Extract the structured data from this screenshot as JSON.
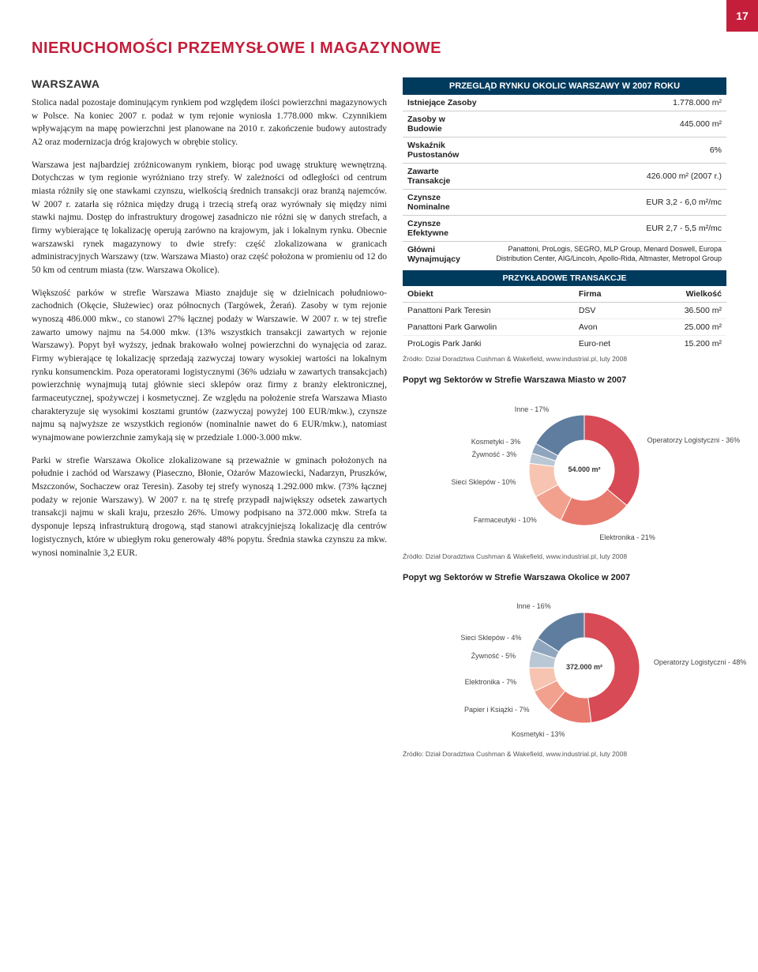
{
  "page_number": "17",
  "section_title": "NIERUCHOMOŚCI PRZEMYSŁOWE I MAGAZYNOWE",
  "subsection": "WARSZAWA",
  "paragraphs": {
    "p1": "Stolica nadal pozostaje dominującym rynkiem pod względem ilości powierzchni magazynowych w Polsce. Na koniec 2007 r. podaż w tym rejonie wyniosła 1.778.000 mkw. Czynnikiem wpływającym na mapę powierzchni jest planowane na 2010 r. zakończenie budowy autostrady A2 oraz modernizacja dróg krajowych w obrębie stolicy.",
    "p2": "Warszawa jest najbardziej zróżnicowanym rynkiem, biorąc pod uwagę strukturę wewnętrzną. Dotychczas w tym regionie wyróżniano trzy strefy. W zależności od odległości od centrum miasta różniły się one stawkami czynszu, wielkością średnich transakcji oraz branżą najemców. W 2007 r. zatarła się różnica między drugą i trzecią strefą oraz wyrównały się między nimi stawki najmu. Dostęp do infrastruktury drogowej zasadniczo nie różni się w danych strefach, a firmy wybierające tę lokalizację operują zarówno na krajowym, jak i lokalnym rynku. Obecnie warszawski rynek magazynowy to dwie strefy: część zlokalizowana w granicach administracyjnych Warszawy (tzw. Warszawa Miasto) oraz część położona w promieniu od 12 do 50 km od centrum miasta (tzw. Warszawa Okolice).",
    "p3": "Większość parków w strefie Warszawa Miasto znajduje się w dzielnicach południowo-zachodnich (Okęcie, Służewiec) oraz północnych (Targówek, Żerań). Zasoby w tym rejonie wynoszą 486.000 mkw., co stanowi 27% łącznej podaży w Warszawie. W 2007 r. w tej strefie zawarto umowy najmu na 54.000 mkw. (13% wszystkich transakcji zawartych w rejonie Warszawy). Popyt był wyższy, jednak brakowało wolnej powierzchni do wynajęcia od zaraz. Firmy wybierające tę lokalizację sprzedają zazwyczaj towary wysokiej wartości na lokalnym rynku konsumenckim. Poza operatorami logistycznymi (36% udziału w zawartych transakcjach) powierzchnię wynajmują tutaj głównie sieci sklepów oraz firmy z branży elektronicznej, farmaceutycznej, spożywczej i kosmetycznej. Ze względu na położenie strefa Warszawa Miasto charakteryzuje się wysokimi kosztami gruntów (zazwyczaj powyżej 100 EUR/mkw.), czynsze najmu są najwyższe ze wszystkich regionów (nominalnie nawet do 6 EUR/mkw.), natomiast wynajmowane powierzchnie zamykają się w przedziale 1.000-3.000 mkw.",
    "p4": "Parki w strefie Warszawa Okolice zlokalizowane są przeważnie w gminach położonych na południe i zachód od Warszawy (Piaseczno, Błonie, Ożarów Mazowiecki, Nadarzyn, Pruszków, Mszczonów, Sochaczew oraz Teresin). Zasoby tej strefy wynoszą 1.292.000 mkw. (73% łącznej podaży w rejonie Warszawy). W 2007 r. na tę strefę przypadł największy odsetek zawartych transakcji najmu w skali kraju, przeszło 26%. Umowy podpisano na 372.000 mkw. Strefa ta dysponuje lepszą infrastrukturą drogową, stąd stanowi atrakcyjniejszą lokalizację dla centrów logistycznych, które w ubiegłym roku generowały 48% popytu. Średnia stawka czynszu za mkw. wynosi nominalnie 3,2 EUR."
  },
  "overview": {
    "header": "PRZEGLĄD RYNKU OKOLIC WARSZAWY W 2007 ROKU",
    "rows": [
      {
        "label": "Istniejące Zasoby",
        "value": "1.778.000 m²"
      },
      {
        "label": "Zasoby w Budowie",
        "value": "445.000 m²"
      },
      {
        "label": "Wskaźnik Pustostanów",
        "value": "6%"
      },
      {
        "label": "Zawarte Transakcje",
        "value": "426.000 m² (2007 r.)"
      },
      {
        "label": "Czynsze Nominalne",
        "value": "EUR 3,2 - 6,0 m²/mc"
      },
      {
        "label": "Czynsze Efektywne",
        "value": "EUR 2,7 - 5,5 m²/mc"
      },
      {
        "label": "Główni Wynajmujący",
        "value": "Panattoni, ProLogis, SEGRO, MLP Group, Menard Doswell, Europa Distribution Center, AIG/Lincoln, Apollo-Rida, Altmaster, Metropol Group"
      }
    ],
    "trans_header": "PRZYKŁADOWE TRANSAKCJE",
    "trans_cols": [
      "Obiekt",
      "Firma",
      "Wielkość"
    ],
    "trans_rows": [
      {
        "c0": "Panattoni Park Teresin",
        "c1": "DSV",
        "c2": "36.500 m²"
      },
      {
        "c0": "Panattoni Park Garwolin",
        "c1": "Avon",
        "c2": "25.000 m²"
      },
      {
        "c0": "ProLogis Park Janki",
        "c1": "Euro-net",
        "c2": "15.200 m²"
      }
    ],
    "source": "Źródło: Dział Doradztwa Cushman & Wakefield, www.industrial.pl, luty 2008"
  },
  "chart1": {
    "title": "Popyt wg Sektorów w Strefie Warszawa Miasto w 2007",
    "center": "54.000 m²",
    "colors": {
      "logistics": "#d84a55",
      "electronics": "#e87a6d",
      "pharma": "#f2a18f",
      "retail": "#f6c4b0",
      "food": "#bac7d4",
      "cosmetics": "#8fa5bd",
      "other": "#5f7d9e"
    },
    "slices": [
      {
        "label": "Operatorzy Logistyczni - 36%",
        "pct": 36,
        "color": "logistics"
      },
      {
        "label": "Elektronika - 21%",
        "pct": 21,
        "color": "electronics"
      },
      {
        "label": "Farmaceutyki - 10%",
        "pct": 10,
        "color": "pharma"
      },
      {
        "label": "Sieci Sklepów - 10%",
        "pct": 10,
        "color": "retail"
      },
      {
        "label": "Żywność - 3%",
        "pct": 3,
        "color": "food"
      },
      {
        "label": "Kosmetyki - 3%",
        "pct": 3,
        "color": "cosmetics"
      },
      {
        "label": "Inne - 17%",
        "pct": 17,
        "color": "other"
      }
    ],
    "source": "Źródło: Dział Doradztwa Cushman & Wakefield, www.industrial.pl, luty 2008"
  },
  "chart2": {
    "title": "Popyt wg Sektorów w Strefie Warszawa Okolice w 2007",
    "center": "372.000 m²",
    "colors": {
      "logistics": "#d84a55",
      "cosmetics": "#e87a6d",
      "paper": "#f2a18f",
      "electronics": "#f6c4b0",
      "food": "#bac7d4",
      "retail": "#8fa5bd",
      "other": "#5f7d9e"
    },
    "slices": [
      {
        "label": "Operatorzy Logistyczni - 48%",
        "pct": 48,
        "color": "logistics"
      },
      {
        "label": "Kosmetyki - 13%",
        "pct": 13,
        "color": "cosmetics"
      },
      {
        "label": "Papier i Książki - 7%",
        "pct": 7,
        "color": "paper"
      },
      {
        "label": "Elektronika - 7%",
        "pct": 7,
        "color": "electronics"
      },
      {
        "label": "Żywność - 5%",
        "pct": 5,
        "color": "food"
      },
      {
        "label": "Sieci Sklepów - 4%",
        "pct": 4,
        "color": "retail"
      },
      {
        "label": "Inne - 16%",
        "pct": 16,
        "color": "other"
      }
    ],
    "source": "Źródło: Dział Doradztwa Cushman & Wakefield, www.industrial.pl, luty 2008"
  }
}
